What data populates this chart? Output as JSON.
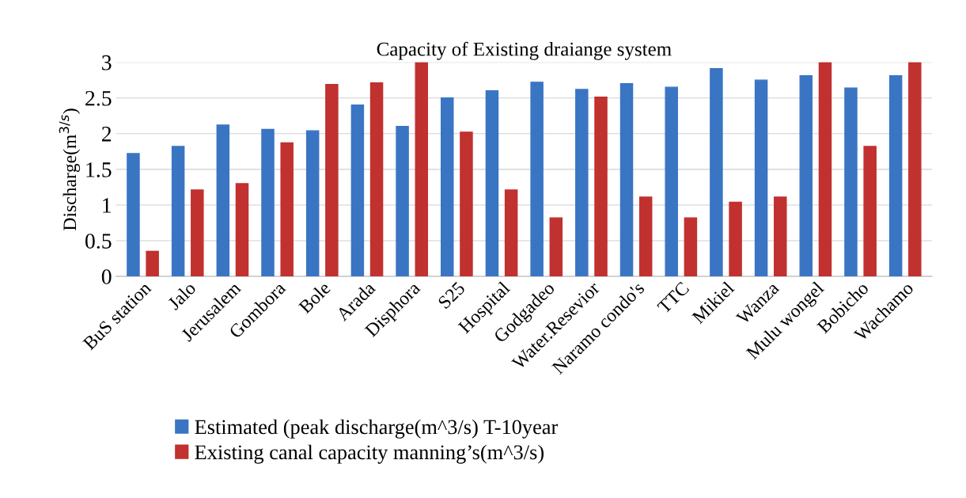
{
  "chart_data": {
    "type": "bar",
    "title": "Capacity of Existing draiange system",
    "ylabel": "Discharge(m$^{3/s}$)",
    "categories": [
      "BuS station",
      "Jalo",
      "Jerusalem",
      "Gombora",
      "Bole",
      "Arada",
      "Disphora",
      "S25",
      "Hospital",
      "Godgadeo",
      "Water.Resevior",
      "Naramo condo's",
      "TTC",
      "Mikiel",
      "Wanza",
      "Mulu wongel",
      "Bobicho",
      "Wachamo"
    ],
    "series": [
      {
        "name": "Estimated (peak discharge(m^3/s) T-10year",
        "color": "#3a75c4",
        "values": [
          1.72,
          1.82,
          2.12,
          2.06,
          2.04,
          2.4,
          2.1,
          2.5,
          2.6,
          2.72,
          2.62,
          2.7,
          2.65,
          2.91,
          2.75,
          2.81,
          2.64,
          2.81
        ]
      },
      {
        "name": "Existing canal capacity manning’s(m^3/s)",
        "color": "#c0312f",
        "values": [
          0.35,
          1.21,
          1.3,
          1.87,
          2.69,
          2.71,
          3.0,
          2.02,
          1.21,
          0.82,
          2.51,
          1.11,
          0.82,
          1.04,
          1.11,
          3.0,
          1.82,
          3.0
        ]
      }
    ],
    "ylim": [
      0,
      3
    ],
    "yticks": [
      0,
      0.5,
      1,
      1.5,
      2,
      2.5,
      3
    ],
    "grid": "y",
    "legend": "bottom"
  }
}
